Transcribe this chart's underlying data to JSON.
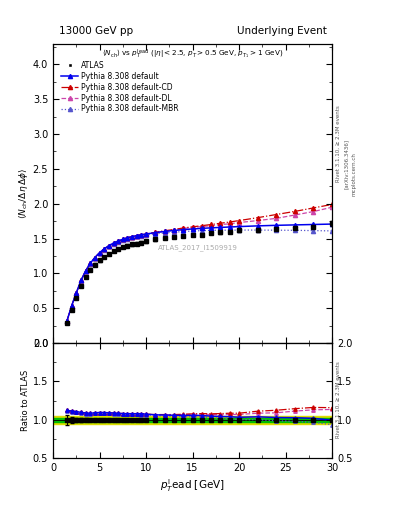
{
  "title_left": "13000 GeV pp",
  "title_right": "Underlying Event",
  "rivet_label": "Rivet 3.1.10, ≥ 2.3M events",
  "arxiv_label": "[arXiv:1306.3436]",
  "mcplots_label": "mcplots.cern.ch",
  "watermark": "ATLAS_2017_I1509919",
  "xlim": [
    0,
    30
  ],
  "main_ylim": [
    0,
    4.3
  ],
  "ratio_ylim": [
    0.5,
    2.0
  ],
  "main_yticks": [
    0.0,
    0.5,
    1.0,
    1.5,
    2.0,
    2.5,
    3.0,
    3.5,
    4.0
  ],
  "ratio_yticks": [
    0.5,
    1.0,
    1.5,
    2.0
  ],
  "data_x": [
    1.5,
    2.0,
    2.5,
    3.0,
    3.5,
    4.0,
    4.5,
    5.0,
    5.5,
    6.0,
    6.5,
    7.0,
    7.5,
    8.0,
    8.5,
    9.0,
    9.5,
    10.0,
    11.0,
    12.0,
    13.0,
    14.0,
    15.0,
    16.0,
    17.0,
    18.0,
    19.0,
    20.0,
    22.0,
    24.0,
    26.0,
    28.0,
    30.0
  ],
  "data_y": [
    0.285,
    0.48,
    0.65,
    0.82,
    0.95,
    1.055,
    1.125,
    1.185,
    1.235,
    1.28,
    1.318,
    1.35,
    1.378,
    1.4,
    1.415,
    1.428,
    1.44,
    1.458,
    1.488,
    1.508,
    1.525,
    1.54,
    1.548,
    1.558,
    1.578,
    1.59,
    1.6,
    1.618,
    1.618,
    1.64,
    1.65,
    1.67,
    1.718
  ],
  "data_yerr": [
    0.018,
    0.018,
    0.018,
    0.018,
    0.018,
    0.018,
    0.018,
    0.018,
    0.018,
    0.018,
    0.018,
    0.018,
    0.018,
    0.018,
    0.018,
    0.018,
    0.018,
    0.018,
    0.018,
    0.018,
    0.018,
    0.018,
    0.018,
    0.018,
    0.018,
    0.018,
    0.018,
    0.018,
    0.018,
    0.018,
    0.018,
    0.018,
    0.04
  ],
  "mc_x": [
    1.5,
    2.0,
    2.5,
    3.0,
    3.5,
    4.0,
    4.5,
    5.0,
    5.5,
    6.0,
    6.5,
    7.0,
    7.5,
    8.0,
    8.5,
    9.0,
    9.5,
    10.0,
    11.0,
    12.0,
    13.0,
    14.0,
    15.0,
    16.0,
    17.0,
    18.0,
    19.0,
    20.0,
    22.0,
    24.0,
    26.0,
    28.0,
    30.0
  ],
  "pythia_default_y": [
    0.32,
    0.535,
    0.72,
    0.9,
    1.035,
    1.145,
    1.228,
    1.298,
    1.352,
    1.398,
    1.435,
    1.465,
    1.49,
    1.512,
    1.528,
    1.542,
    1.555,
    1.565,
    1.585,
    1.602,
    1.616,
    1.628,
    1.638,
    1.646,
    1.654,
    1.66,
    1.666,
    1.672,
    1.682,
    1.69,
    1.696,
    1.702,
    1.708
  ],
  "pythia_cd_y": [
    0.32,
    0.535,
    0.72,
    0.9,
    1.035,
    1.145,
    1.228,
    1.298,
    1.352,
    1.398,
    1.435,
    1.465,
    1.49,
    1.512,
    1.528,
    1.542,
    1.555,
    1.565,
    1.59,
    1.612,
    1.63,
    1.652,
    1.668,
    1.685,
    1.702,
    1.72,
    1.738,
    1.758,
    1.8,
    1.845,
    1.89,
    1.94,
    1.99
  ],
  "pythia_dl_y": [
    0.32,
    0.535,
    0.72,
    0.9,
    1.035,
    1.145,
    1.228,
    1.298,
    1.352,
    1.398,
    1.435,
    1.465,
    1.49,
    1.512,
    1.528,
    1.542,
    1.555,
    1.565,
    1.588,
    1.608,
    1.625,
    1.645,
    1.66,
    1.672,
    1.685,
    1.7,
    1.712,
    1.73,
    1.758,
    1.79,
    1.838,
    1.888,
    1.95
  ],
  "pythia_mbr_y": [
    0.318,
    0.532,
    0.718,
    0.895,
    1.028,
    1.138,
    1.22,
    1.288,
    1.342,
    1.388,
    1.425,
    1.455,
    1.48,
    1.5,
    1.516,
    1.53,
    1.54,
    1.55,
    1.568,
    1.582,
    1.592,
    1.6,
    1.608,
    1.614,
    1.618,
    1.62,
    1.62,
    1.622,
    1.622,
    1.62,
    1.618,
    1.614,
    1.61
  ],
  "color_default": "#0000ee",
  "color_cd": "#cc0000",
  "color_dl": "#cc44aa",
  "color_mbr": "#5555cc",
  "color_data": "#000000",
  "color_green_band": "#00bb00",
  "color_yellow_band": "#dddd00"
}
